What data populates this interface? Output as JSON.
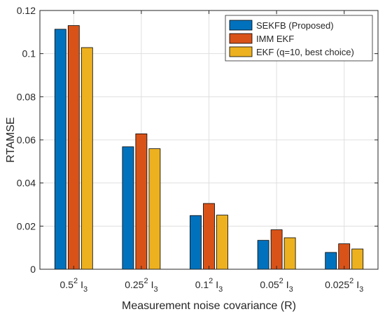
{
  "chart_data": {
    "type": "bar",
    "title": "",
    "xlabel": "Measurement noise covariance (R)",
    "ylabel": "RTAMSE",
    "categories": [
      {
        "base": "0.5",
        "exp": "2",
        "mat": "I",
        "sub": "3"
      },
      {
        "base": "0.25",
        "exp": "2",
        "mat": "I",
        "sub": "3"
      },
      {
        "base": "0.1",
        "exp": "2",
        "mat": "I",
        "sub": "3"
      },
      {
        "base": "0.05",
        "exp": "2",
        "mat": "I",
        "sub": "3"
      },
      {
        "base": "0.025",
        "exp": "2",
        "mat": "I",
        "sub": "3"
      }
    ],
    "ylim": [
      0,
      0.12
    ],
    "yticks": [
      0,
      0.02,
      0.04,
      0.06,
      0.08,
      0.1,
      0.12
    ],
    "ytick_labels": [
      "0",
      "0.02",
      "0.04",
      "0.06",
      "0.08",
      "0.1",
      "0.12"
    ],
    "grid": true,
    "legend_position": "top-right",
    "series": [
      {
        "name": "SEKFB (Proposed)",
        "color": "#0072BD",
        "values": [
          0.1113,
          0.0568,
          0.0249,
          0.0134,
          0.0078
        ]
      },
      {
        "name": "IMM EKF",
        "color": "#D95319",
        "values": [
          0.113,
          0.0628,
          0.0305,
          0.0183,
          0.0118
        ]
      },
      {
        "name": "EKF (q=10, best choice)",
        "color": "#EDB120",
        "values": [
          0.1028,
          0.0559,
          0.0251,
          0.0146,
          0.0094
        ]
      }
    ]
  }
}
